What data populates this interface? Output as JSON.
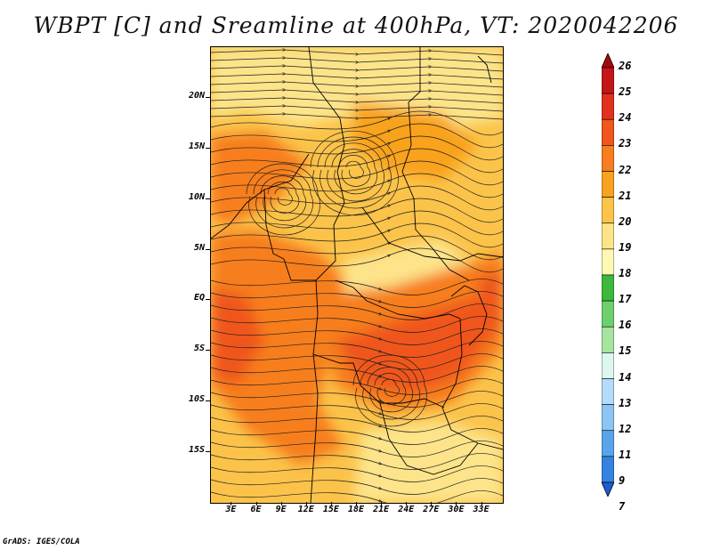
{
  "title": "WBPT [C] and Sreamline at 400hPa, VT: 2020042206",
  "footer": "GrADS: IGES/COLA",
  "axes": {
    "lat_ticks": [
      {
        "label": "20N",
        "lat": 20
      },
      {
        "label": "15N",
        "lat": 15
      },
      {
        "label": "10N",
        "lat": 10
      },
      {
        "label": "5N",
        "lat": 5
      },
      {
        "label": "EQ",
        "lat": 0
      },
      {
        "label": "5S",
        "lat": -5
      },
      {
        "label": "10S",
        "lat": -10
      },
      {
        "label": "15S",
        "lat": -15
      }
    ],
    "lon_ticks": [
      {
        "label": "3E",
        "lon": 3
      },
      {
        "label": "6E",
        "lon": 6
      },
      {
        "label": "9E",
        "lon": 9
      },
      {
        "label": "12E",
        "lon": 12
      },
      {
        "label": "15E",
        "lon": 15
      },
      {
        "label": "18E",
        "lon": 18
      },
      {
        "label": "21E",
        "lon": 21
      },
      {
        "label": "24E",
        "lon": 24
      },
      {
        "label": "27E",
        "lon": 27
      },
      {
        "label": "30E",
        "lon": 30
      },
      {
        "label": "33E",
        "lon": 33
      }
    ],
    "lon_range": [
      0.5,
      35.5
    ],
    "lat_range": [
      -20,
      25
    ]
  },
  "colorbar": {
    "labels": [
      "26",
      "25",
      "24",
      "23",
      "22",
      "21",
      "20",
      "19",
      "18",
      "17",
      "16",
      "15",
      "14",
      "13",
      "12",
      "11",
      "9",
      "7"
    ],
    "colors": [
      "#a50a0a",
      "#c41616",
      "#e0321c",
      "#f0561e",
      "#f77e1e",
      "#f9a21e",
      "#fbc34a",
      "#fde48a",
      "#fef8b4",
      "#3cb83c",
      "#6ecf6e",
      "#a6e4a0",
      "#dcf6f0",
      "#b4dcf8",
      "#8cc4f4",
      "#5aa4ec",
      "#3682e0",
      "#1a5cd4"
    ]
  },
  "map_colors": {
    "warm_19": "#fde48a",
    "mid_20": "#fbc34a",
    "mid_21": "#f9a21e",
    "hot_22": "#f77e1e",
    "hot_23": "#f0561e"
  }
}
